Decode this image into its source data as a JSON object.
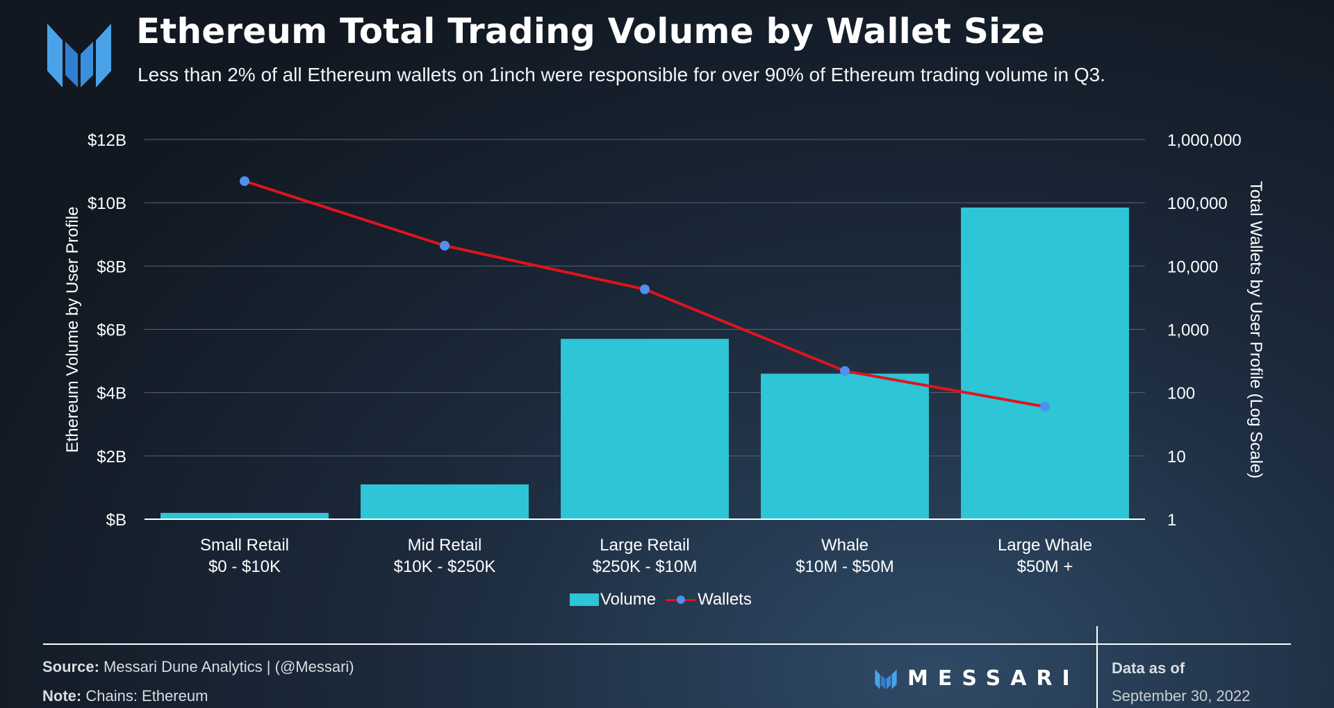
{
  "header": {
    "title": "Ethereum Total Trading Volume by Wallet Size",
    "subtitle": "Less than 2% of all Ethereum wallets on 1inch were responsible for over 90% of Ethereum trading volume in Q3."
  },
  "chart_data": {
    "type": "bar",
    "categories": [
      [
        "Small Retail",
        "$0 - $10K"
      ],
      [
        "Mid Retail",
        "$10K - $250K"
      ],
      [
        "Large Retail",
        "$250K - $10M"
      ],
      [
        "Whale",
        "$10M - $50M"
      ],
      [
        "Large Whale",
        "$50M +"
      ]
    ],
    "series": [
      {
        "name": "Volume",
        "type": "bar",
        "axis": "left",
        "color": "#2ec5d6",
        "values": [
          0.2,
          1.1,
          5.7,
          4.6,
          9.85
        ]
      },
      {
        "name": "Wallets",
        "type": "line",
        "axis": "right",
        "color": "#e0141c",
        "marker_color": "#4f8ff0",
        "values": [
          220000,
          21000,
          4300,
          220,
          60
        ]
      }
    ],
    "ylabel": "Ethereum Volume by User Profile",
    "y2label": "Total Wallets by User Profile (Log Scale)",
    "ylim": [
      0,
      12
    ],
    "yticks": [
      0,
      2,
      4,
      6,
      8,
      10,
      12
    ],
    "ytick_labels": [
      "$B",
      "$2B",
      "$4B",
      "$6B",
      "$8B",
      "$10B",
      "$12B"
    ],
    "y2scale": "log",
    "y2lim": [
      1,
      1000000
    ],
    "y2ticks": [
      1,
      10,
      100,
      1000,
      10000,
      100000,
      1000000
    ],
    "y2tick_labels": [
      "1",
      "10",
      "100",
      "1,000",
      "10,000",
      "100,000",
      "1,000,000"
    ],
    "grid": true,
    "legend_position": "bottom-center"
  },
  "footer": {
    "source_label": "Source:",
    "source_text": " Messari Dune Analytics | (@Messari)",
    "note_label": "Note:",
    "note_text": " Chains: Ethereum",
    "brand": "MESSARI",
    "data_as_of_label": "Data as of",
    "data_as_of_date": "September 30, 2022"
  }
}
